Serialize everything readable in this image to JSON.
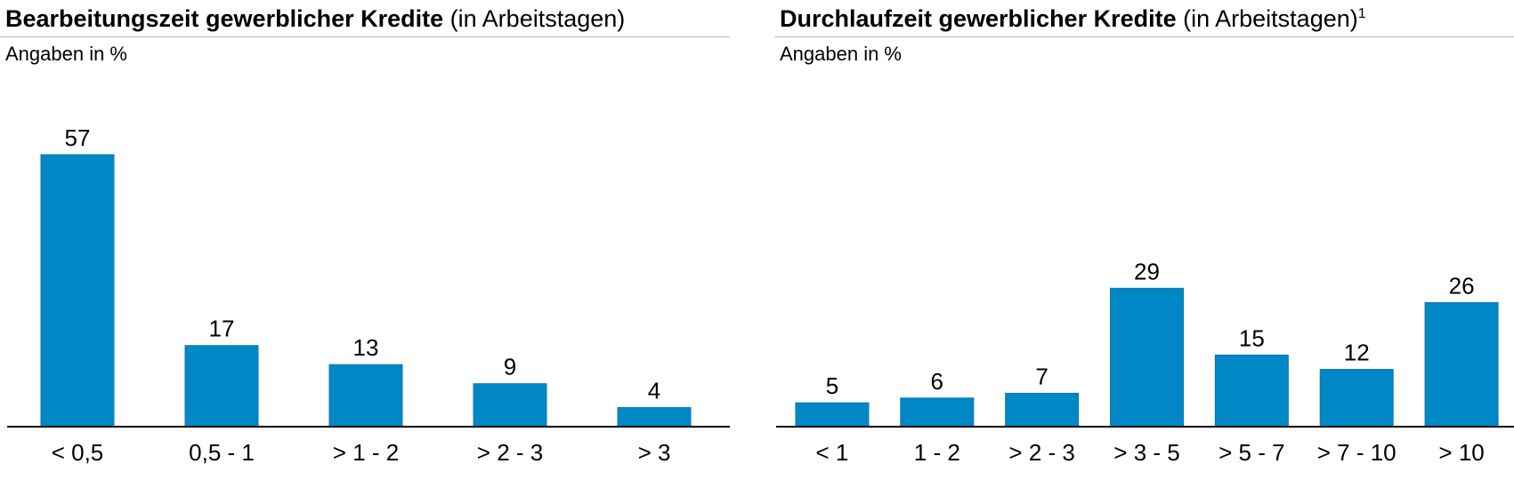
{
  "colors": {
    "bar": "#0088c6",
    "bar_stroke": "#0a77ad",
    "axis": "#000000"
  },
  "chart_data": [
    {
      "type": "bar",
      "title": "Bearbeitungszeit gewerblicher Kredite",
      "title_suffix": "(in Arbeitstagen)",
      "subtitle": "Angaben in %",
      "categories": [
        "< 0,5",
        "0,5 - 1",
        "> 1 - 2",
        "> 2 - 3",
        "> 3"
      ],
      "values": [
        57,
        17,
        13,
        9,
        4
      ],
      "ylim": [
        0,
        57
      ],
      "xlabel": "",
      "ylabel": "",
      "grid": false,
      "legend": "none"
    },
    {
      "type": "bar",
      "title": "Durchlaufzeit gewerblicher Kredite",
      "title_suffix": "(in Arbeitstagen)",
      "title_footnote": "1",
      "subtitle": "Angaben in %",
      "categories": [
        "< 1",
        "1 - 2",
        "> 2 - 3",
        "> 3 - 5",
        "> 5 - 7",
        "> 7 - 10",
        "> 10"
      ],
      "values": [
        5,
        6,
        7,
        29,
        15,
        12,
        26
      ],
      "ylim": [
        0,
        57
      ],
      "xlabel": "",
      "ylabel": "",
      "grid": false,
      "legend": "none"
    }
  ]
}
